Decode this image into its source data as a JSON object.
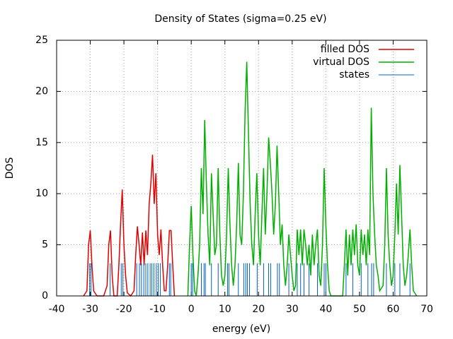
{
  "chart_data": {
    "type": "line",
    "title": "Density of States (sigma=0.25 eV)",
    "x_label": "energy (eV)",
    "y_label": "DOS",
    "xlim": [
      -40,
      70
    ],
    "ylim": [
      0,
      25
    ],
    "xticks": [
      -40,
      -30,
      -20,
      -10,
      0,
      10,
      20,
      30,
      40,
      50,
      60,
      70
    ],
    "yticks": [
      0,
      5,
      10,
      15,
      20,
      25
    ],
    "grid": true,
    "legend": "top right",
    "series": [
      {
        "name": "filled DOS",
        "color": "#e00000",
        "style": "line",
        "x": [
          -32,
          -31,
          -30.5,
          -30,
          -29.5,
          -29,
          -28,
          -26,
          -25,
          -24.5,
          -24,
          -23.5,
          -23,
          -22,
          -21.5,
          -21,
          -20.5,
          -20,
          -19.5,
          -19,
          -18,
          -17,
          -16.5,
          -16,
          -15.5,
          -15,
          -14.5,
          -14,
          -13.5,
          -13,
          -12.5,
          -12,
          -11.5,
          -11,
          -10.5,
          -10,
          -9.5,
          -9,
          -8.5,
          -8,
          -7.5,
          -7,
          -6.5,
          -6,
          -5.5,
          -5
        ],
        "values": [
          0,
          0.5,
          5,
          6.4,
          3,
          0.5,
          0,
          0,
          1,
          5,
          6.4,
          2,
          0,
          0,
          3,
          7,
          10.4,
          5,
          2,
          0.3,
          0,
          0.5,
          4,
          6.8,
          5,
          3,
          6.2,
          3,
          6.4,
          4,
          9,
          11,
          13.8,
          9,
          12,
          6,
          4,
          6.5,
          3,
          0.5,
          0.5,
          3,
          6.4,
          6.4,
          3,
          0
        ]
      },
      {
        "name": "virtual DOS",
        "color": "#00b000",
        "style": "line",
        "x": [
          -1,
          -0.5,
          0,
          0.5,
          1,
          1.5,
          2,
          2.5,
          3,
          3.5,
          4,
          4.5,
          5,
          5.5,
          6,
          6.5,
          7,
          7.5,
          8,
          8.5,
          9,
          9.5,
          10,
          10.5,
          11,
          11.5,
          12,
          12.5,
          13,
          13.5,
          14,
          14.5,
          15,
          15.5,
          16,
          16.5,
          17,
          17.5,
          18,
          18.5,
          19,
          19.5,
          20,
          20.5,
          21,
          21.5,
          22,
          22.5,
          23,
          23.5,
          24,
          24.5,
          25,
          25.5,
          26,
          26.5,
          27,
          27.5,
          28,
          28.5,
          29,
          29.5,
          30,
          30.5,
          31,
          31.5,
          32,
          32.5,
          33,
          33.5,
          34,
          34.5,
          35,
          35.5,
          36,
          36.5,
          37,
          37.5,
          38,
          38.5,
          39,
          39.5,
          40,
          40.5,
          41,
          41.5,
          45,
          45.5,
          46,
          46.5,
          47,
          47.5,
          48,
          48.5,
          49,
          49.5,
          50,
          50.5,
          51,
          51.5,
          52,
          52.5,
          53,
          53.5,
          54,
          54.5,
          55,
          55.5,
          56,
          57,
          57.5,
          58,
          58.5,
          59,
          59.5,
          60,
          60.5,
          61,
          61.5,
          62,
          62.5,
          63,
          63.5,
          64,
          64.5,
          65,
          65.5,
          66,
          67
        ],
        "values": [
          0,
          5,
          8.8,
          4,
          0.5,
          0,
          2,
          5,
          12.5,
          8,
          17.2,
          11,
          6,
          3,
          12,
          8,
          4,
          5,
          12.5,
          6,
          2,
          1,
          2,
          6,
          12.5,
          7,
          3,
          1,
          3,
          7,
          13,
          6,
          5,
          10,
          18,
          22.9,
          16,
          9,
          5,
          3,
          8,
          12,
          6,
          3,
          8,
          12.5,
          6,
          10,
          15.5,
          13,
          10,
          6,
          9,
          14.7,
          10,
          5,
          7,
          3,
          1,
          3,
          6,
          4,
          2,
          0.5,
          1,
          6.5,
          4,
          6.5,
          3,
          6.5,
          5,
          3,
          5,
          2,
          6,
          3,
          5,
          6.5,
          2,
          1,
          5,
          12.5,
          7,
          3,
          0.5,
          0,
          0,
          3,
          6.5,
          2,
          6,
          3,
          6.5,
          4,
          7,
          3,
          2,
          6.5,
          4,
          6,
          3,
          6.5,
          4,
          18.4,
          10,
          6,
          3,
          2,
          0.5,
          1,
          5,
          12.5,
          6,
          3,
          1,
          2,
          6,
          11,
          6,
          12.8,
          8,
          3,
          1,
          2,
          4,
          6.5,
          3,
          0.5,
          0
        ]
      },
      {
        "name": "states",
        "color": "#0060c0",
        "style": "impulses",
        "x": [
          -30.2,
          -29.8,
          -24.1,
          -20.8,
          -20.3,
          -16.2,
          -15.4,
          -14.8,
          -14.1,
          -13.5,
          -12.9,
          -12.2,
          -11.7,
          -11.1,
          -10.4,
          -9.8,
          -9.2,
          -6.5,
          -6.1,
          0,
          0.4,
          3,
          3.8,
          4.2,
          6,
          8,
          10.8,
          11.2,
          14,
          15.6,
          16.2,
          16.7,
          17.3,
          19.6,
          21.5,
          23,
          23.6,
          25.6,
          26.2,
          29,
          31.5,
          32.5,
          33.5,
          35,
          37.5,
          39.5,
          40,
          46,
          48,
          50.5,
          52.5,
          53.6,
          54.2,
          58,
          60.5,
          62,
          65
        ],
        "values": [
          3.2,
          3.2,
          3.2,
          3.2,
          3.2,
          3.2,
          3.2,
          3.2,
          3.2,
          3.2,
          3.2,
          3.2,
          3.2,
          3.2,
          3.2,
          3.2,
          3.2,
          3.2,
          3.2,
          3.2,
          3.2,
          3.2,
          3.2,
          3.2,
          3.2,
          3.2,
          3.2,
          3.2,
          3.2,
          3.2,
          3.2,
          3.2,
          3.2,
          3.2,
          3.2,
          3.2,
          3.2,
          3.2,
          3.2,
          3.2,
          3.2,
          3.2,
          3.2,
          3.2,
          3.2,
          3.2,
          3.2,
          3.2,
          3.2,
          3.2,
          3.2,
          3.2,
          3.2,
          3.2,
          3.2,
          3.2,
          3.2
        ]
      }
    ]
  }
}
